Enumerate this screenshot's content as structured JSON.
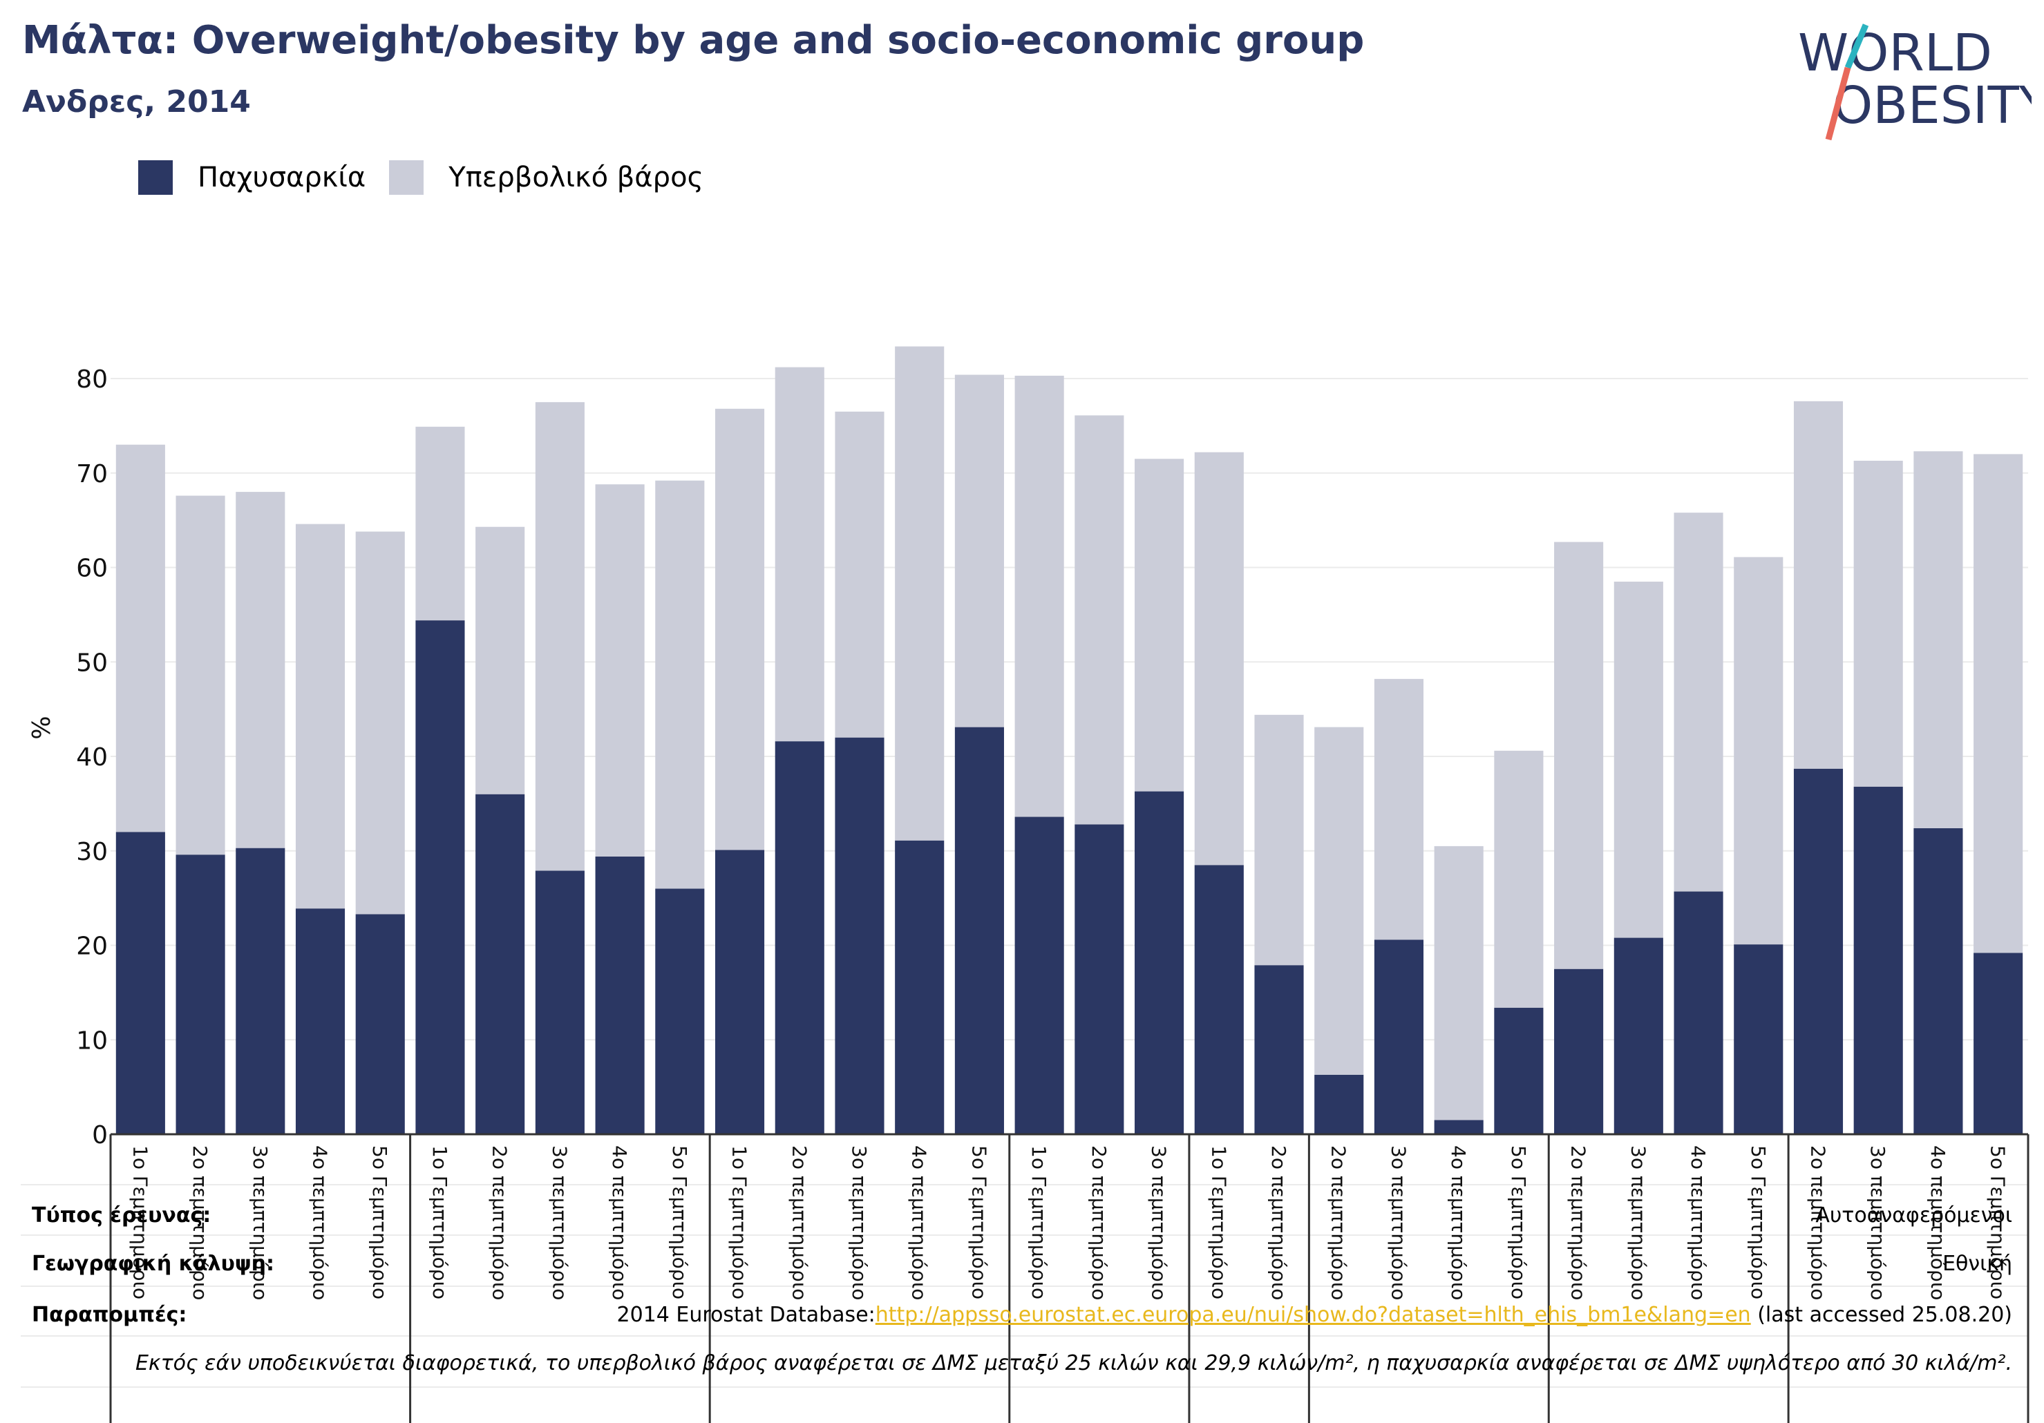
{
  "header": {
    "title": "Μάλτα: Overweight/obesity by age and socio-economic group",
    "subtitle": "Ανδρες, 2014"
  },
  "logo": {
    "line1": "WORLD",
    "line2": "OBESITY",
    "colors": {
      "text": "#2b3763",
      "slash_top": "#2bb3c0",
      "slash_bottom": "#e8685a"
    }
  },
  "legend": {
    "items": [
      {
        "label": "Παχυσαρκία",
        "color": "#2b3763"
      },
      {
        "label": "Υπερβολικό βάρος",
        "color": "#cbcdd9"
      }
    ]
  },
  "colors": {
    "obesity": "#2b3763",
    "overweight": "#cbcdd9",
    "grid": "#ebebeb",
    "axis": "#333333"
  },
  "chart_data": {
    "type": "bar",
    "stacked": true,
    "ylabel": "%",
    "xlabel": "",
    "ylim": [
      0,
      80
    ],
    "yticks": [
      0,
      10,
      20,
      30,
      40,
      50,
      60,
      70,
      80
    ],
    "grid": true,
    "legend_position": "top-left",
    "categories": [
      "1ο Γεμπτημόριο",
      "2ο πεμπτημόριο",
      "3ο πεμπτημόριο",
      "4ο πεμπτημόριο",
      "5ο Γεμπτημόριο",
      "1ο Γεμπτημόριο",
      "2ο πεμπτημόριο",
      "3ο πεμπτημόριο",
      "4ο πεμπτημόριο",
      "5ο Γεμπτημόριο",
      "1ο Γεμπτημόριο",
      "2ο πεμπτημόριο",
      "3ο πεμπτημόριο",
      "4ο πεμπτημόριο",
      "5ο Γεμπτημόριο",
      "1ο Γεμπτημόριο",
      "2ο πεμπτημόριο",
      "3ο πεμπτημόριο",
      "1ο Γεμπτημόριο",
      "2ο πεμπτημόριο",
      "2ο πεμπτημόριο",
      "3ο πεμπτημόριο",
      "4ο πεμπτημόριο",
      "5ο Γεμπτημόριο",
      "2ο πεμπτημόριο",
      "3ο πεμπτημόριο",
      "4ο πεμπτημόριο",
      "5ο Γεμπτημόριο",
      "2ο πεμπτημόριο",
      "3ο πεμπτημόριο",
      "4ο πεμπτημόριο",
      "5ο Γεμπτημόριο"
    ],
    "group_sizes": [
      5,
      5,
      5,
      3,
      2,
      4,
      4,
      4
    ],
    "series": [
      {
        "name": "Παχυσαρκία",
        "values": [
          32.0,
          29.6,
          30.3,
          23.9,
          23.3,
          54.4,
          36.0,
          27.9,
          29.4,
          26.0,
          30.1,
          41.6,
          42.0,
          31.1,
          43.1,
          33.6,
          32.8,
          36.3,
          28.5,
          17.9,
          6.3,
          20.6,
          1.5,
          13.4,
          17.5,
          20.8,
          25.7,
          20.1,
          38.7,
          36.8,
          32.4,
          19.2
        ]
      },
      {
        "name": "Υπερβολικό βάρος",
        "values": [
          41.0,
          38.0,
          37.7,
          40.7,
          40.5,
          20.5,
          28.3,
          49.6,
          39.4,
          43.2,
          46.7,
          39.6,
          34.5,
          52.3,
          37.3,
          46.7,
          43.3,
          35.2,
          43.7,
          26.5,
          36.8,
          27.6,
          29.0,
          27.2,
          45.2,
          37.7,
          40.1,
          41.0,
          38.9,
          34.5,
          39.9,
          52.8
        ]
      }
    ]
  },
  "footer": {
    "rows": [
      {
        "label": "Τύπος έρευνας:",
        "value": "Αυτοαναφερόμενοι"
      },
      {
        "label": "Γεωγραφική κάλυψη:",
        "value": "Εθνική"
      }
    ],
    "references": {
      "label": "Παραπομπές:",
      "prefix": "2014 Eurostat Database:",
      "link": "http://appsso.eurostat.ec.europa.eu/nui/show.do?dataset=hlth_ehis_bm1e&lang=en",
      "suffix": " (last accessed 25.08.20)"
    },
    "note": "Εκτός εάν υποδεικνύεται διαφορετικά, το υπερβολικό βάρος αναφέρεται σε ΔΜΣ μεταξύ 25 κιλών και 29,9 κιλών/m², η παχυσαρκία αναφέρεται σε ΔΜΣ υψηλότερο από 30 κιλά/m²."
  }
}
